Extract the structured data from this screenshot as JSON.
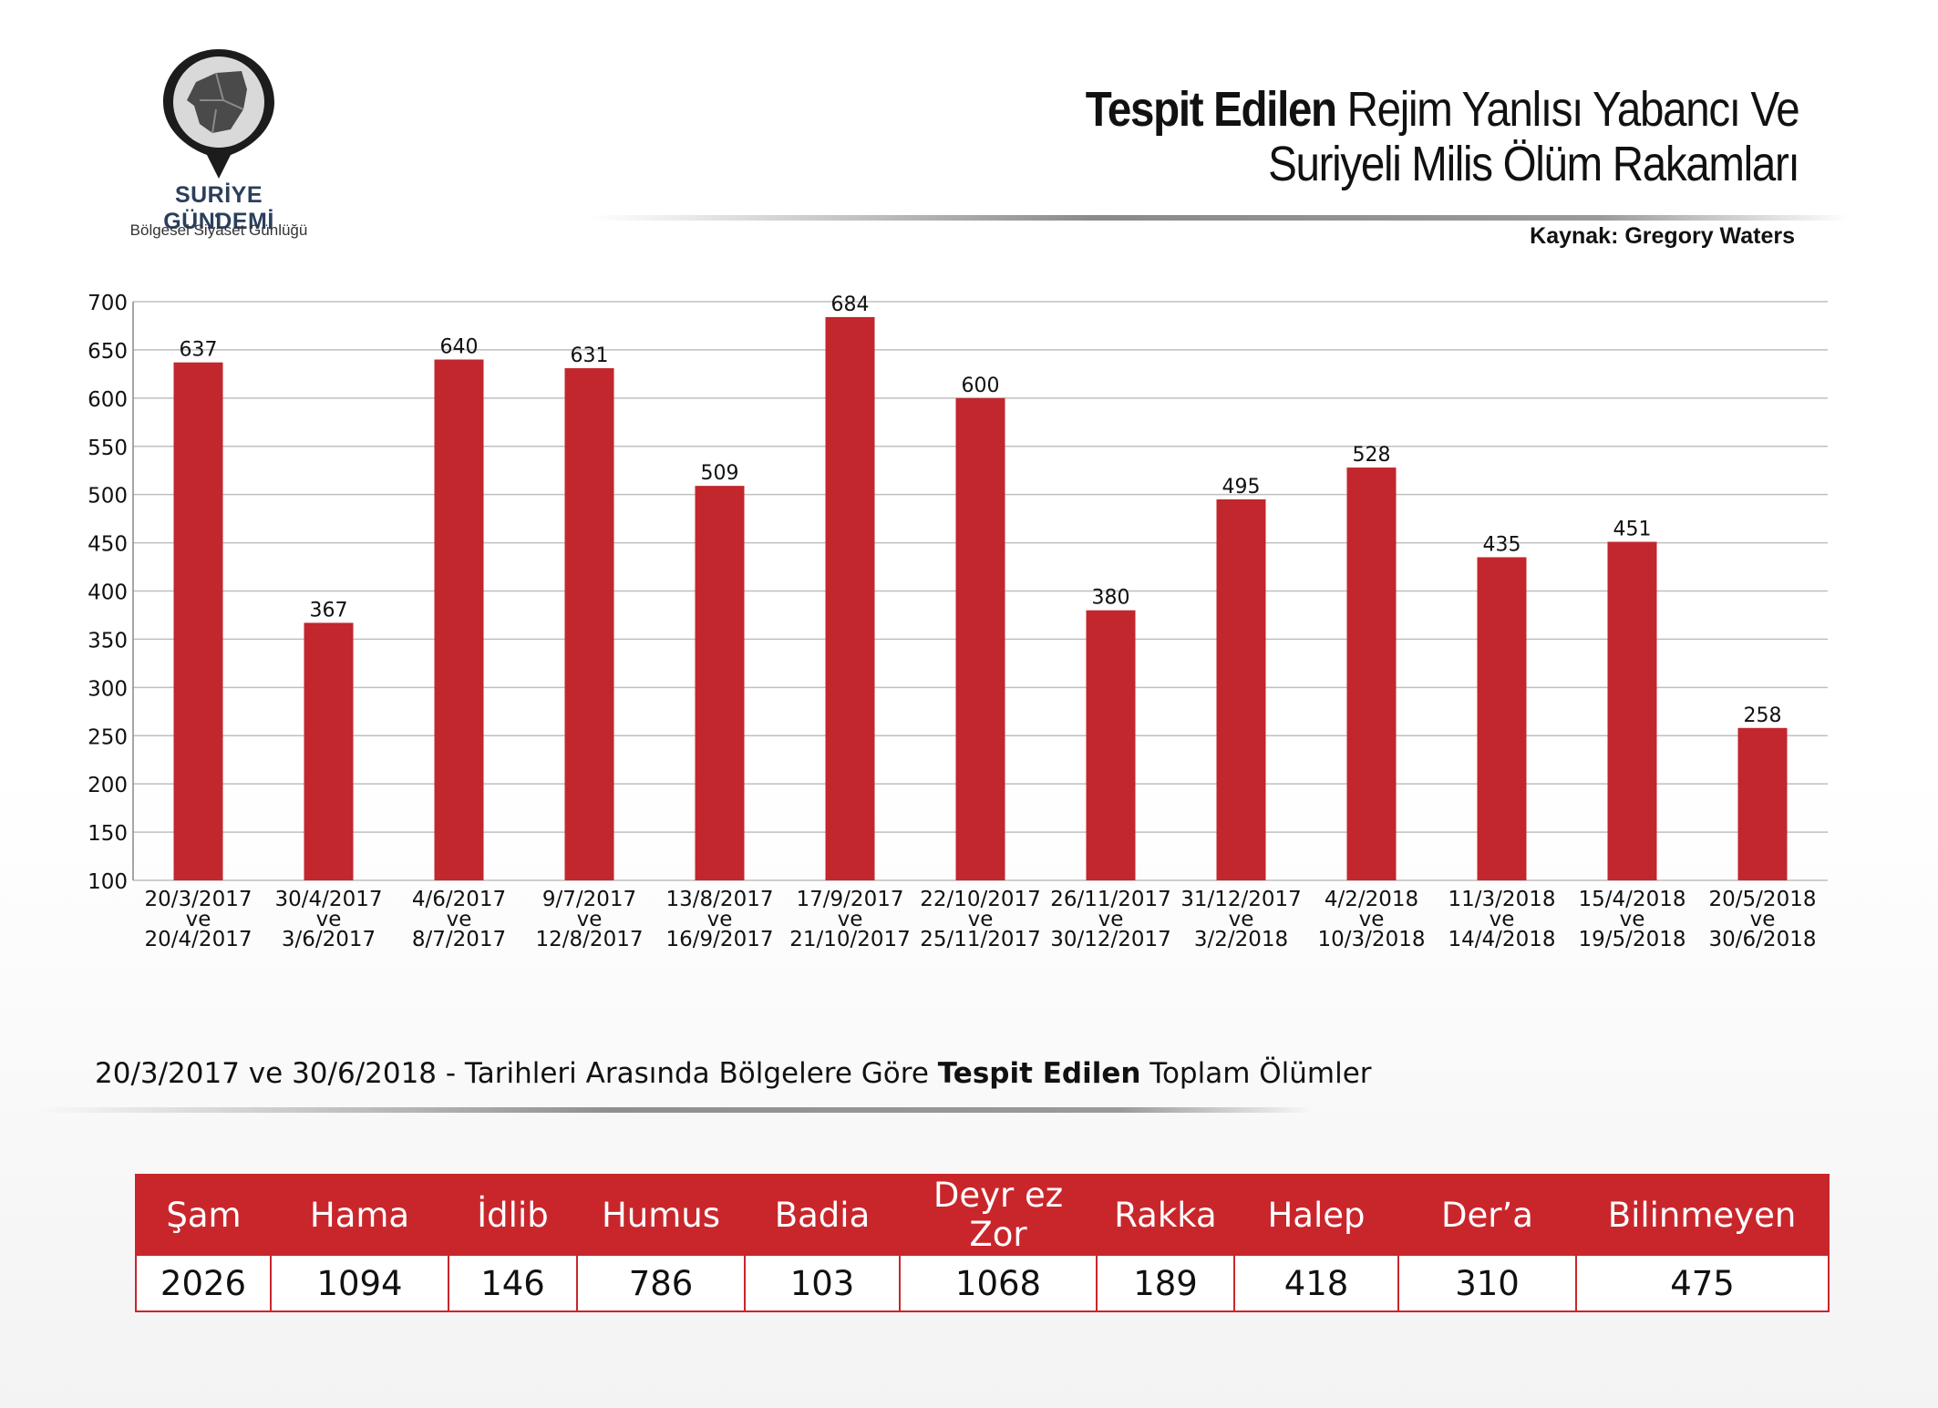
{
  "brand": {
    "name_part1": "SURİYE GÜNDEMİ",
    "tagline": "Bölgesel Siyaset Günlüğü"
  },
  "title": {
    "bold": "Tespit Edilen",
    "rest_line1": " Rejim Yanlısı Yabancı Ve",
    "line2": "Suriyeli Milis Ölüm Rakamları"
  },
  "source": "Kaynak: Gregory Waters",
  "colors": {
    "bar": "#c1272d",
    "grid": "#bfbfbf",
    "table_header": "#c9262c"
  },
  "chart_data": {
    "type": "bar",
    "title": "Tespit Edilen Rejim Yanlısı Yabancı Ve Suriyeli Milis Ölüm Rakamları",
    "categories": [
      [
        "20/3/2017",
        "ve",
        "20/4/2017"
      ],
      [
        "30/4/2017",
        "ve",
        "3/6/2017"
      ],
      [
        "4/6/2017",
        "ve",
        "8/7/2017"
      ],
      [
        "9/7/2017",
        "ve",
        "12/8/2017"
      ],
      [
        "13/8/2017",
        "ve",
        "16/9/2017"
      ],
      [
        "17/9/2017",
        "ve",
        "21/10/2017"
      ],
      [
        "22/10/2017",
        "ve",
        "25/11/2017"
      ],
      [
        "26/11/2017",
        "ve",
        "30/12/2017"
      ],
      [
        "31/12/2017",
        "ve",
        "3/2/2018"
      ],
      [
        "4/2/2018",
        "ve",
        "10/3/2018"
      ],
      [
        "11/3/2018",
        "ve",
        "14/4/2018"
      ],
      [
        "15/4/2018",
        "ve",
        "19/5/2018"
      ],
      [
        "20/5/2018",
        "ve",
        "30/6/2018"
      ]
    ],
    "values": [
      637,
      367,
      640,
      631,
      509,
      684,
      600,
      380,
      495,
      528,
      435,
      451,
      258
    ],
    "ylim": [
      100,
      700
    ],
    "yticks": [
      100,
      150,
      200,
      250,
      300,
      350,
      400,
      450,
      500,
      550,
      600,
      650,
      700
    ],
    "grid": true
  },
  "table": {
    "caption_part1": "20/3/2017 ve 30/6/2018 - Tarihleri Arasında Bölgelere Göre ",
    "caption_bold": "Tespit Edilen",
    "caption_part2": " Toplam Ölümler",
    "headers": [
      "Şam",
      "Hama",
      "İdlib",
      "Humus",
      "Badia",
      "Deyr ez Zor",
      "Rakka",
      "Halep",
      "Der’a",
      "Bilinmeyen"
    ],
    "values": [
      "2026",
      "1094",
      "146",
      "786",
      "103",
      "1068",
      "189",
      "418",
      "310",
      "475"
    ]
  }
}
